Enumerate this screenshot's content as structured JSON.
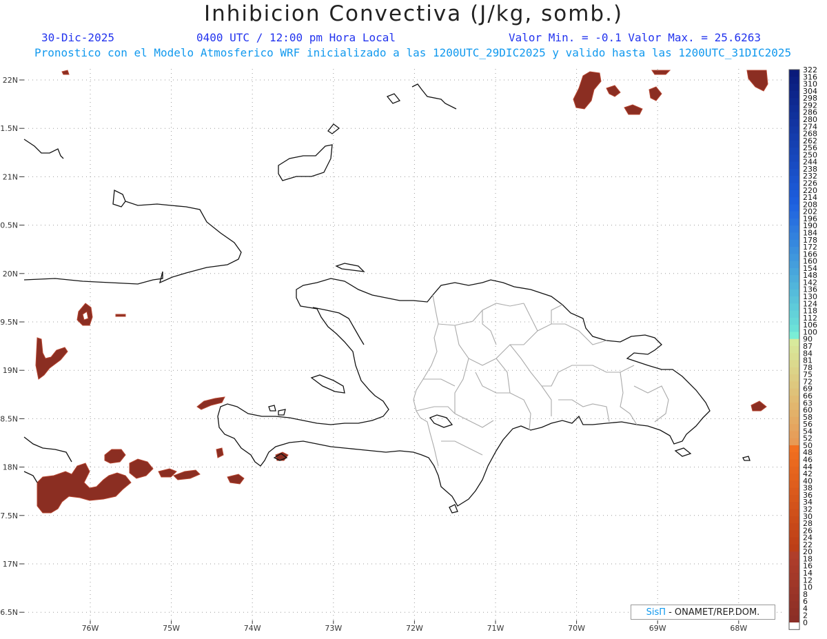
{
  "header": {
    "title": "Inhibicion Convectiva (J/kg, somb.)",
    "date": "30-Dic-2025",
    "time": "0400 UTC / 12:00 pm Hora Local",
    "minmax": "Valor Min. = -0.1  Valor Max. = 25.6263",
    "description": "Pronostico con el Modelo Atmosferico WRF inicializado a las 1200UTC_29DIC2025 y valido hasta las  1200UTC_31DIC2025"
  },
  "axes": {
    "lat_labels": [
      "22N",
      "1.5N",
      "21N",
      "0.5N",
      "20N",
      "9.5N",
      "19N",
      "8.5N",
      "18N",
      "7.5N",
      "17N",
      "6.5N"
    ],
    "lon_labels": [
      "76W",
      "75W",
      "74W",
      "73W",
      "72W",
      "71W",
      "70W",
      "69W",
      "68W"
    ]
  },
  "colorbar": {
    "labels": [
      "322",
      "316",
      "310",
      "304",
      "298",
      "292",
      "286",
      "280",
      "274",
      "268",
      "262",
      "256",
      "250",
      "244",
      "238",
      "232",
      "226",
      "220",
      "214",
      "208",
      "202",
      "196",
      "190",
      "184",
      "178",
      "172",
      "166",
      "160",
      "154",
      "148",
      "142",
      "136",
      "130",
      "124",
      "118",
      "112",
      "106",
      "100",
      "90",
      "87",
      "84",
      "81",
      "78",
      "75",
      "72",
      "69",
      "66",
      "63",
      "60",
      "58",
      "56",
      "54",
      "52",
      "50",
      "48",
      "46",
      "44",
      "42",
      "40",
      "38",
      "36",
      "34",
      "32",
      "30",
      "28",
      "26",
      "24",
      "22",
      "20",
      "18",
      "16",
      "14",
      "12",
      "10",
      "8",
      "6",
      "4",
      "2",
      "0"
    ]
  },
  "field": {
    "fill_color": "#8b2e22",
    "edge_color": "#b5442f"
  },
  "credit": {
    "brand": "SisΠ",
    "org": "- ONAMET/REP.DOM."
  }
}
